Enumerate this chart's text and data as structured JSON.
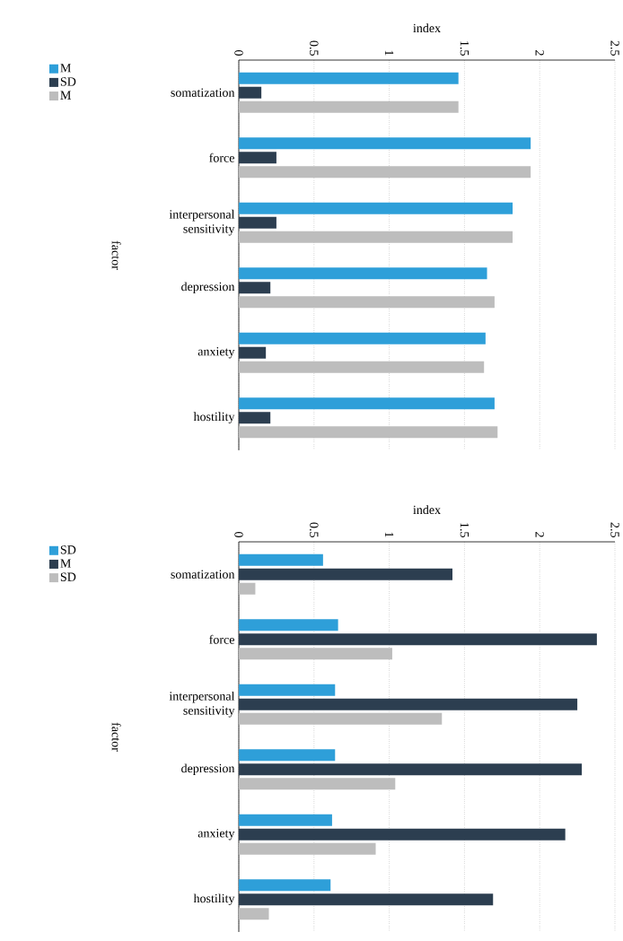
{
  "chart_data": [
    {
      "type": "bar",
      "orientation": "horizontal",
      "xlabel": "index",
      "ylabel": "factor",
      "categories": [
        "somatization",
        "force",
        "interpersonal sensitivity",
        "depression",
        "anxiety",
        "hostility"
      ],
      "series": [
        {
          "name": "M",
          "color": "#2e9fd9",
          "values": [
            1.46,
            1.94,
            1.82,
            1.65,
            1.64,
            1.7
          ]
        },
        {
          "name": "SD",
          "color": "#2c3e50",
          "values": [
            0.15,
            0.25,
            0.25,
            0.21,
            0.18,
            0.21
          ]
        },
        {
          "name": "M",
          "color": "#bdbdbd",
          "values": [
            1.46,
            1.94,
            1.82,
            1.7,
            1.63,
            1.72
          ]
        }
      ],
      "xlim": [
        0,
        2.5
      ],
      "xticks": [
        0,
        0.5,
        1,
        1.5,
        2,
        2.5
      ],
      "grid": "x",
      "legend": "top left"
    },
    {
      "type": "bar",
      "orientation": "horizontal",
      "xlabel": "index",
      "ylabel": "factor",
      "categories": [
        "somatization",
        "force",
        "interpersonal sensitivity",
        "depression",
        "anxiety",
        "hostility"
      ],
      "series": [
        {
          "name": "SD",
          "color": "#2e9fd9",
          "values": [
            0.56,
            0.66,
            0.64,
            0.64,
            0.62,
            0.61
          ]
        },
        {
          "name": "M",
          "color": "#2c3e50",
          "values": [
            1.42,
            2.38,
            2.25,
            2.28,
            2.17,
            1.69
          ]
        },
        {
          "name": "SD",
          "color": "#bdbdbd",
          "values": [
            0.11,
            1.02,
            1.35,
            1.04,
            0.91,
            0.2
          ]
        }
      ],
      "xlim": [
        0,
        2.5
      ],
      "xticks": [
        0,
        0.5,
        1,
        1.5,
        2,
        2.5
      ],
      "grid": "x",
      "legend": "top left"
    }
  ]
}
